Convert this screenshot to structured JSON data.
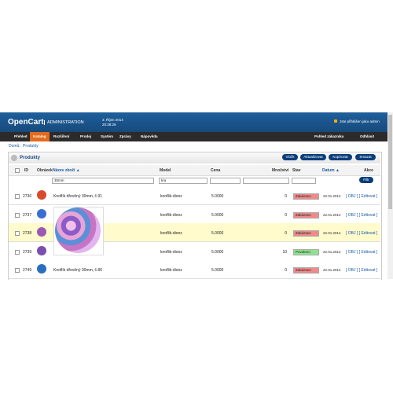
{
  "header": {
    "logo": "OpenCart",
    "admin": "ADMINISTRATION",
    "date": "3. Říjen 2014",
    "time": "20:38:26",
    "login": "Jste přihlášen jako admin"
  },
  "menu": {
    "items": [
      "Přehled",
      "Katalog",
      "Rozšíření",
      "Prodej",
      "Systém",
      "Zprávy",
      "Nápověda"
    ],
    "right": [
      "Pohled zákazníka",
      "Odhlásit"
    ]
  },
  "breadcrumb": {
    "items": [
      "Domů",
      "Produkty"
    ],
    "separator": "::"
  },
  "box": {
    "title": "Produkty",
    "buttons": [
      "Vložit",
      "Aktualizovat",
      "Kopírovat",
      "Smazat"
    ]
  },
  "table": {
    "columns": [
      "ID",
      "Obrázek",
      "Název zboží ▲",
      "Model",
      "Cena",
      "Množství",
      "Stav",
      "Datum ▲",
      "Akce"
    ],
    "filter": {
      "name": "30mm",
      "model": "kra",
      "button": "Filtr"
    },
    "rows": [
      {
        "id": "2736",
        "name": "Knoflík dřevěný 30mm, č.91",
        "model": "knoflik-dionz",
        "price": "5.0000",
        "qty": "0",
        "status": "Zakázano",
        "date": "22.01.2014",
        "actions": "[ OBJ ] [ Editovat ]"
      },
      {
        "id": "2737",
        "model": "knoflik-dionz",
        "price": "5.0000",
        "qty": "0",
        "status": "Zakázano",
        "date": "22.01.2014",
        "actions": "[ OBJ ] [ Editovat ]"
      },
      {
        "id": "2738",
        "model": "knoflik-dionz",
        "price": "5.0000",
        "qty": "0",
        "status": "Zakázano",
        "date": "22.01.2014",
        "actions": "[ OBJ ] [ Editovat ]"
      },
      {
        "id": "2739",
        "model": "knoflik-dionz",
        "price": "5.0000",
        "qty": "10",
        "status": "Povoleno",
        "date": "22.01.2014",
        "actions": "[ OBJ ] [ Editovat ]"
      },
      {
        "id": "2749",
        "name": "Knoflík dřevěný 30mm, č.86",
        "model": "knoflik-dionz",
        "price": "5.0000",
        "qty": "0",
        "status": "Zakázano",
        "date": "22.01.2014",
        "actions": "[ OBJ ] [ Editovat ]"
      }
    ]
  }
}
